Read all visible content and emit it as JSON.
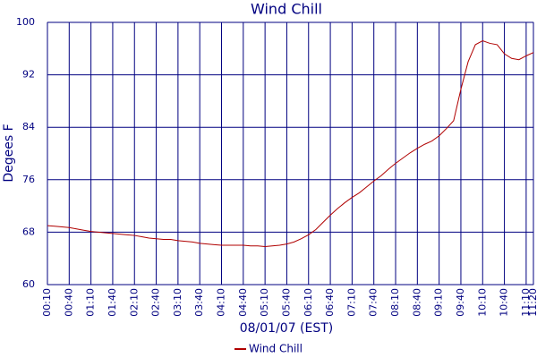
{
  "chart_data": {
    "type": "line",
    "title": "Wind Chill",
    "y_label": "Degees F",
    "x_label": "08/01/07 (EST)",
    "categories": [
      "00:10",
      null,
      null,
      "00:40",
      null,
      null,
      "01:10",
      null,
      null,
      "01:40",
      null,
      null,
      "02:10",
      null,
      null,
      "02:40",
      null,
      null,
      "03:10",
      null,
      null,
      "03:40",
      null,
      null,
      "04:10",
      null,
      null,
      "04:40",
      null,
      null,
      "05:10",
      null,
      null,
      "05:40",
      null,
      null,
      "06:10",
      null,
      null,
      "06:40",
      null,
      null,
      "07:10",
      null,
      null,
      "07:40",
      null,
      null,
      "08:10",
      null,
      null,
      "08:40",
      null,
      null,
      "09:10",
      null,
      null,
      "09:40",
      null,
      null,
      "10:10",
      null,
      null,
      "10:40",
      null,
      null,
      "11:10",
      "11:20"
    ],
    "series": [
      {
        "name": "Wind Chill",
        "color": "#b00000",
        "values": [
          69.0,
          68.9,
          68.8,
          68.7,
          68.5,
          68.3,
          68.1,
          68.0,
          67.9,
          67.8,
          67.7,
          67.6,
          67.5,
          67.3,
          67.1,
          67.0,
          66.9,
          66.9,
          66.7,
          66.6,
          66.5,
          66.3,
          66.2,
          66.1,
          66.0,
          66.0,
          66.0,
          66.0,
          65.9,
          65.9,
          65.8,
          65.9,
          66.0,
          66.2,
          66.5,
          67.0,
          67.6,
          68.4,
          69.5,
          70.6,
          71.6,
          72.5,
          73.3,
          74.0,
          74.9,
          75.8,
          76.6,
          77.6,
          78.5,
          79.3,
          80.1,
          80.8,
          81.4,
          81.9,
          82.7,
          83.8,
          85.0,
          89.8,
          94.0,
          96.6,
          97.2,
          96.8,
          96.6,
          95.2,
          94.5,
          94.3,
          94.9,
          95.4
        ]
      }
    ],
    "ylim": [
      60,
      100
    ],
    "yticks": [
      60,
      68,
      76,
      84,
      92,
      100
    ],
    "grid": true,
    "grid_color": "#000080",
    "legend": "bottom"
  }
}
